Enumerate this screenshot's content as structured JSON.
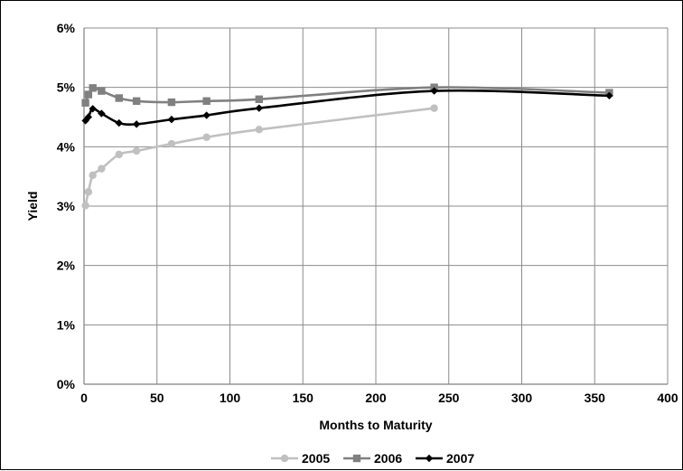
{
  "chart_data": {
    "type": "line",
    "xlabel": "Months to Maturity",
    "ylabel": "Yield",
    "xlim": [
      0,
      400
    ],
    "ylim": [
      0,
      6
    ],
    "x_ticks": [
      "0",
      "50",
      "100",
      "150",
      "200",
      "250",
      "300",
      "350",
      "400"
    ],
    "y_ticks": [
      "0%",
      "1%",
      "2%",
      "3%",
      "4%",
      "5%",
      "6%"
    ],
    "grid": true,
    "legend_position": "bottom",
    "series": [
      {
        "name": "2005",
        "color": "#c0c0c0",
        "marker": "circle",
        "points": [
          {
            "x": 1,
            "y": 3.01
          },
          {
            "x": 3,
            "y": 3.24
          },
          {
            "x": 6,
            "y": 3.52
          },
          {
            "x": 12,
            "y": 3.63
          },
          {
            "x": 24,
            "y": 3.87
          },
          {
            "x": 36,
            "y": 3.93
          },
          {
            "x": 60,
            "y": 4.05
          },
          {
            "x": 84,
            "y": 4.16
          },
          {
            "x": 120,
            "y": 4.29
          },
          {
            "x": 240,
            "y": 4.65
          }
        ]
      },
      {
        "name": "2006",
        "color": "#808080",
        "marker": "square",
        "points": [
          {
            "x": 1,
            "y": 4.74
          },
          {
            "x": 3,
            "y": 4.88
          },
          {
            "x": 6,
            "y": 4.99
          },
          {
            "x": 12,
            "y": 4.94
          },
          {
            "x": 24,
            "y": 4.82
          },
          {
            "x": 36,
            "y": 4.77
          },
          {
            "x": 60,
            "y": 4.75
          },
          {
            "x": 84,
            "y": 4.77
          },
          {
            "x": 120,
            "y": 4.8
          },
          {
            "x": 240,
            "y": 5.0
          },
          {
            "x": 360,
            "y": 4.91
          }
        ]
      },
      {
        "name": "2007",
        "color": "#000000",
        "marker": "diamond",
        "points": [
          {
            "x": 1,
            "y": 4.44
          },
          {
            "x": 3,
            "y": 4.5
          },
          {
            "x": 6,
            "y": 4.64
          },
          {
            "x": 12,
            "y": 4.56
          },
          {
            "x": 24,
            "y": 4.4
          },
          {
            "x": 36,
            "y": 4.38
          },
          {
            "x": 60,
            "y": 4.46
          },
          {
            "x": 84,
            "y": 4.53
          },
          {
            "x": 120,
            "y": 4.65
          },
          {
            "x": 240,
            "y": 4.94
          },
          {
            "x": 360,
            "y": 4.86
          }
        ]
      }
    ]
  }
}
